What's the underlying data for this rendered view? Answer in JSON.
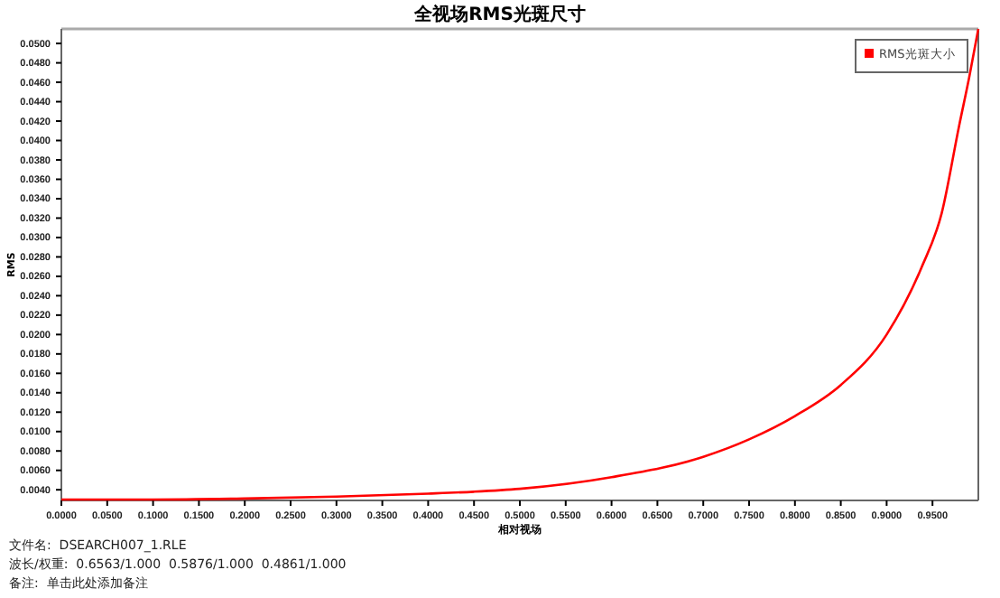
{
  "chart_data": {
    "type": "line",
    "title": "全视场RMS光斑尺寸",
    "xlabel": "相对视场",
    "ylabel": "RMS",
    "x": [
      0,
      0.1,
      0.2,
      0.3,
      0.4,
      0.45,
      0.5,
      0.6,
      0.7,
      0.75,
      0.8,
      0.85,
      0.9,
      0.938,
      0.96,
      0.979,
      0.99,
      1.0
    ],
    "series": [
      {
        "name": "RMS光斑大小",
        "color": "#ff0000",
        "values": [
          0.003,
          0.003,
          0.0031,
          0.0033,
          0.0036,
          0.0038,
          0.0041,
          0.0053,
          0.0074,
          0.0092,
          0.0116,
          0.0148,
          0.02,
          0.0269,
          0.0325,
          0.0415,
          0.0465,
          0.0515
        ]
      }
    ],
    "xlim": [
      0,
      1
    ],
    "xticks": [
      {
        "value": 0,
        "label": "0.0000"
      },
      {
        "value": 0.05,
        "label": "0.0500"
      },
      {
        "value": 0.1,
        "label": "0.1000"
      },
      {
        "value": 0.15,
        "label": "0.1500"
      },
      {
        "value": 0.2,
        "label": "0.2000"
      },
      {
        "value": 0.25,
        "label": "0.2500"
      },
      {
        "value": 0.3,
        "label": "0.3000"
      },
      {
        "value": 0.35,
        "label": "0.3500"
      },
      {
        "value": 0.4,
        "label": "0.4000"
      },
      {
        "value": 0.45,
        "label": "0.4500"
      },
      {
        "value": 0.5,
        "label": "0.5000"
      },
      {
        "value": 0.55,
        "label": "0.5500"
      },
      {
        "value": 0.6,
        "label": "0.6000"
      },
      {
        "value": 0.65,
        "label": "0.6500"
      },
      {
        "value": 0.7,
        "label": "0.7000"
      },
      {
        "value": 0.75,
        "label": "0.7500"
      },
      {
        "value": 0.8,
        "label": "0.8000"
      },
      {
        "value": 0.85,
        "label": "0.8500"
      },
      {
        "value": 0.9,
        "label": "0.9000"
      },
      {
        "value": 0.95,
        "label": "0.9500"
      }
    ],
    "ylim": [
      0.0029,
      0.0515
    ],
    "yticks": [
      {
        "value": 0.004,
        "label": "0.0040"
      },
      {
        "value": 0.006,
        "label": "0.0060"
      },
      {
        "value": 0.008,
        "label": "0.0080"
      },
      {
        "value": 0.01,
        "label": "0.0100"
      },
      {
        "value": 0.012,
        "label": "0.0120"
      },
      {
        "value": 0.014,
        "label": "0.0140"
      },
      {
        "value": 0.016,
        "label": "0.0160"
      },
      {
        "value": 0.018,
        "label": "0.0180"
      },
      {
        "value": 0.02,
        "label": "0.0200"
      },
      {
        "value": 0.022,
        "label": "0.0220"
      },
      {
        "value": 0.024,
        "label": "0.0240"
      },
      {
        "value": 0.026,
        "label": "0.0260"
      },
      {
        "value": 0.028,
        "label": "0.0280"
      },
      {
        "value": 0.03,
        "label": "0.0300"
      },
      {
        "value": 0.032,
        "label": "0.0320"
      },
      {
        "value": 0.034,
        "label": "0.0340"
      },
      {
        "value": 0.036,
        "label": "0.0360"
      },
      {
        "value": 0.038,
        "label": "0.0380"
      },
      {
        "value": 0.04,
        "label": "0.0400"
      },
      {
        "value": 0.042,
        "label": "0.0420"
      },
      {
        "value": 0.044,
        "label": "0.0440"
      },
      {
        "value": 0.046,
        "label": "0.0460"
      },
      {
        "value": 0.048,
        "label": "0.0480"
      },
      {
        "value": 0.05,
        "label": "0.0500"
      }
    ],
    "grid": false,
    "legend": "top right",
    "marker": "none",
    "line_style": "solid",
    "annotations": [
      "文件名:  DSEARCH007_1.RLE",
      "波长/权重:  0.6563/1.000  0.5876/1.000  0.4861/1.000",
      "备注:  单击此处添加备注"
    ]
  }
}
